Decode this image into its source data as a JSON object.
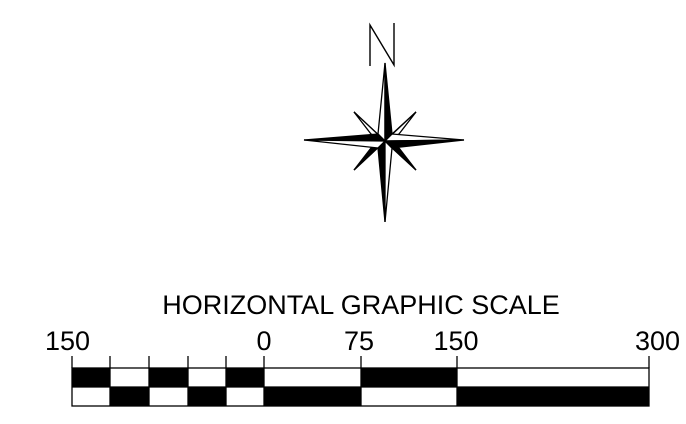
{
  "north_arrow": {
    "label": "N"
  },
  "scale_bar": {
    "title": "HORIZONTAL GRAPHIC SCALE",
    "tick_labels": [
      "150",
      "0",
      "75",
      "150",
      "300"
    ],
    "colors": {
      "fill": "#000000",
      "background": "#ffffff"
    }
  }
}
